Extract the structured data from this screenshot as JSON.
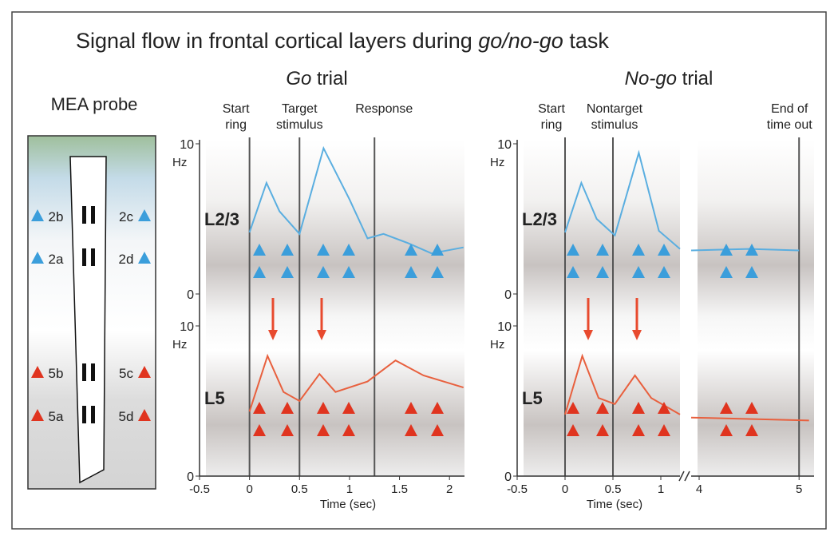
{
  "title": {
    "prefix": "Signal flow in frontal cortical layers during ",
    "italic": "go/no-go",
    "suffix": " task"
  },
  "probe": {
    "title": "MEA probe",
    "sites": [
      "2b",
      "2c",
      "2a",
      "2d",
      "5b",
      "5c",
      "5a",
      "5d"
    ]
  },
  "chart_data": [
    {
      "type": "line",
      "title_italic": "Go",
      "title": " trial",
      "xlabel": "Time (sec)",
      "xlim": [
        [
          -0.5,
          2.15
        ]
      ],
      "xticks": [
        -0.5,
        0,
        0.5,
        1,
        1.5,
        2
      ],
      "events": [
        {
          "x": 0,
          "label": [
            "Start",
            "ring"
          ]
        },
        {
          "x": 0.5,
          "label": [
            "Target",
            "stimulus"
          ]
        },
        {
          "x": 1.25,
          "label": [
            "Response"
          ]
        }
      ],
      "layers": [
        {
          "name": "L2/3",
          "unit": "Hz",
          "ylim": [
            0,
            10
          ],
          "yticks": [
            0,
            10
          ],
          "color": "#5aaee0",
          "x": [
            0,
            0.17,
            0.3,
            0.5,
            0.74,
            1.0,
            1.18,
            1.34,
            1.58,
            1.82,
            2.14
          ],
          "values": [
            4.1,
            7.4,
            5.5,
            4.0,
            9.7,
            6.3,
            3.7,
            4.0,
            3.4,
            2.7,
            3.1
          ]
        },
        {
          "name": "L5",
          "unit": "Hz",
          "ylim": [
            0,
            10
          ],
          "yticks": [
            0,
            10
          ],
          "color": "#e8603e",
          "x": [
            0,
            0.18,
            0.34,
            0.5,
            0.7,
            0.86,
            1.18,
            1.46,
            1.74,
            2.14
          ],
          "values": [
            4.3,
            8.0,
            5.6,
            5.0,
            6.8,
            5.6,
            6.3,
            7.7,
            6.7,
            5.9
          ]
        }
      ]
    },
    {
      "type": "line",
      "title_italic": "No-go",
      "title": " trial",
      "xlabel": "Time (sec)",
      "xlim": [
        [
          -0.5,
          1.2
        ],
        [
          3.92,
          5.15
        ]
      ],
      "xticks": [
        -0.5,
        0,
        0.5,
        1,
        4,
        5
      ],
      "events": [
        {
          "x": 0,
          "label": [
            "Start",
            "ring"
          ]
        },
        {
          "x": 0.5,
          "label": [
            "Nontarget",
            "stimulus"
          ]
        },
        {
          "x": 5,
          "label": [
            "End of",
            "time out"
          ]
        }
      ],
      "layers": [
        {
          "name": "L2/3",
          "unit": "Hz",
          "ylim": [
            0,
            10
          ],
          "yticks": [
            0,
            10
          ],
          "color": "#5aaee0",
          "x": [
            0,
            0.17,
            0.33,
            0.52,
            0.77,
            0.98,
            1.2,
            3.92,
            4.5,
            5.0
          ],
          "values": [
            4.1,
            7.4,
            5.0,
            3.9,
            9.4,
            4.2,
            3.0,
            2.9,
            3.0,
            2.9
          ]
        },
        {
          "name": "L5",
          "unit": "Hz",
          "ylim": [
            0,
            10
          ],
          "yticks": [
            0,
            10
          ],
          "color": "#e8603e",
          "x": [
            0,
            0.18,
            0.35,
            0.52,
            0.73,
            0.9,
            1.2,
            3.92,
            5.1
          ],
          "values": [
            4.1,
            8.0,
            5.2,
            4.8,
            6.7,
            5.2,
            4.1,
            3.9,
            3.7
          ]
        }
      ]
    }
  ]
}
